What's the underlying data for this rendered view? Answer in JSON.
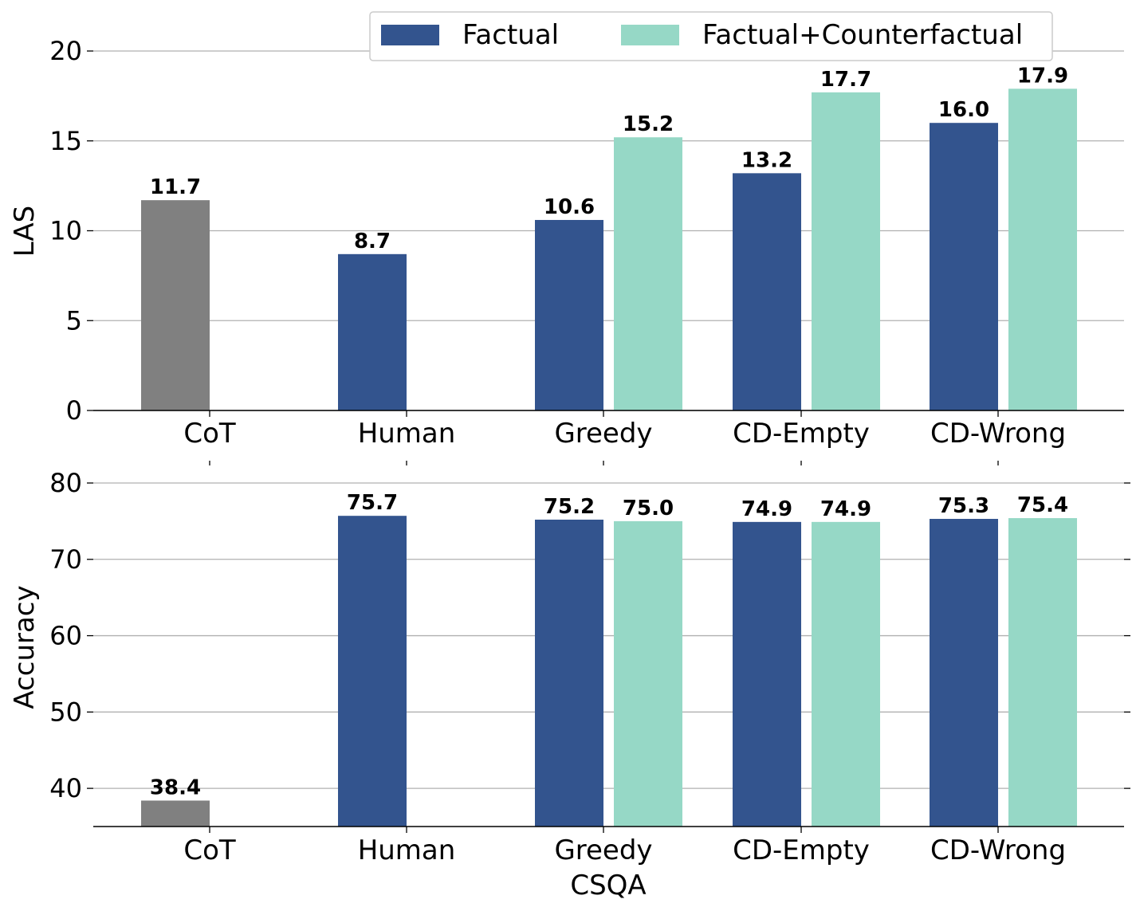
{
  "chart_data": [
    {
      "type": "bar",
      "title": "",
      "xlabel": "",
      "ylabel": "LAS",
      "ylim": [
        0,
        20
      ],
      "yticks": [
        "0",
        "5",
        "10",
        "15",
        "20"
      ],
      "categories": [
        "CoT",
        "Human",
        "Greedy",
        "CD-Empty",
        "CD-Wrong"
      ],
      "grid": true,
      "legend": "top-right",
      "series": [
        {
          "name": "Factual",
          "color": "#33548e",
          "values": [
            null,
            8.7,
            10.6,
            13.2,
            16.0
          ],
          "labels": [
            "",
            "8.7",
            "10.6",
            "13.2",
            "16.0"
          ]
        },
        {
          "name": "Factual+Counterfactual",
          "color": "#96d8c6",
          "values": [
            null,
            null,
            15.2,
            17.7,
            17.9
          ],
          "labels": [
            "",
            "",
            "15.2",
            "17.7",
            "17.9"
          ]
        },
        {
          "name": "CoT",
          "color": "#808080",
          "values": [
            11.7,
            null,
            null,
            null,
            null
          ],
          "labels": [
            "11.7",
            "",
            "",
            "",
            ""
          ],
          "in_legend": false
        }
      ]
    },
    {
      "type": "bar",
      "title": "",
      "xlabel": "CSQA",
      "ylabel": "Accuracy",
      "ylim": [
        35,
        80
      ],
      "yticks": [
        "40",
        "50",
        "60",
        "70",
        "80"
      ],
      "categories": [
        "CoT",
        "Human",
        "Greedy",
        "CD-Empty",
        "CD-Wrong"
      ],
      "grid": true,
      "series": [
        {
          "name": "Factual",
          "color": "#33548e",
          "values": [
            null,
            75.7,
            75.2,
            74.9,
            75.3
          ],
          "labels": [
            "",
            "75.7",
            "75.2",
            "74.9",
            "75.3"
          ]
        },
        {
          "name": "Factual+Counterfactual",
          "color": "#96d8c6",
          "values": [
            null,
            null,
            75.0,
            74.9,
            75.4
          ],
          "labels": [
            "",
            "",
            "75.0",
            "74.9",
            "75.4"
          ]
        },
        {
          "name": "CoT",
          "color": "#808080",
          "values": [
            38.4,
            null,
            null,
            null,
            null
          ],
          "labels": [
            "38.4",
            "",
            "",
            "",
            ""
          ],
          "in_legend": false
        }
      ]
    }
  ],
  "legend": {
    "items": [
      {
        "label": "Factual",
        "color": "#33548e"
      },
      {
        "label": "Factual+Counterfactual",
        "color": "#96d8c6"
      }
    ]
  }
}
